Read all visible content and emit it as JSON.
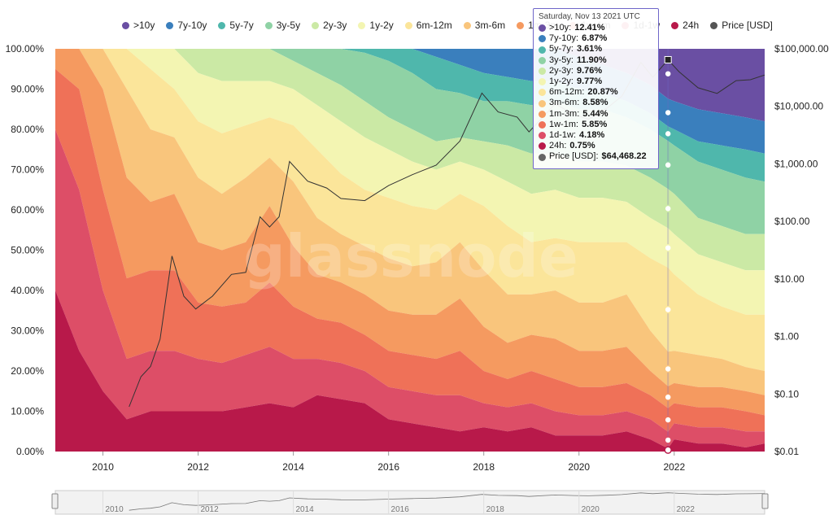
{
  "colors": {
    "bands": [
      "#6a4fa3",
      "#3a7fbd",
      "#4fb7ac",
      "#8fd2a5",
      "#cbe9a5",
      "#f3f5b2",
      "#fbe59a",
      "#f9c57c",
      "#f59a60",
      "#ef7158",
      "#dd4e67",
      "#b8194a"
    ],
    "price": "#333333",
    "highlight": "#6f66c9"
  },
  "legend": [
    {
      "name": ">10y",
      "color": "#6a4fa3"
    },
    {
      "name": "7y-10y",
      "color": "#3a7fbd"
    },
    {
      "name": "5y-7y",
      "color": "#4fb7ac"
    },
    {
      "name": "3y-5y",
      "color": "#8fd2a5"
    },
    {
      "name": "2y-3y",
      "color": "#cbe9a5"
    },
    {
      "name": "1y-2y",
      "color": "#f3f5b2"
    },
    {
      "name": "6m-12m",
      "color": "#fbe59a"
    },
    {
      "name": "3m-6m",
      "color": "#f9c57c"
    },
    {
      "name": "1m-3m",
      "color": "#f59a60"
    },
    {
      "name": "1w-1m",
      "color": "#ef7158"
    },
    {
      "name": "1d-1w",
      "color": "#dd4e67"
    },
    {
      "name": "24h",
      "color": "#b8194a"
    },
    {
      "name": "Price [USD]",
      "color": "#555555"
    }
  ],
  "tooltip": {
    "date": "Saturday, Nov 13 2021 UTC",
    "rows": [
      {
        "label": ">10y:",
        "value": "12.41%",
        "color": "#6a4fa3"
      },
      {
        "label": "7y-10y:",
        "value": "6.87%",
        "color": "#3a7fbd"
      },
      {
        "label": "5y-7y:",
        "value": "3.61%",
        "color": "#4fb7ac"
      },
      {
        "label": "3y-5y:",
        "value": "11.90%",
        "color": "#8fd2a5"
      },
      {
        "label": "2y-3y:",
        "value": "9.76%",
        "color": "#cbe9a5"
      },
      {
        "label": "1y-2y:",
        "value": "9.77%",
        "color": "#f3f5b2"
      },
      {
        "label": "6m-12m:",
        "value": "20.87%",
        "color": "#fbe59a"
      },
      {
        "label": "3m-6m:",
        "value": "8.58%",
        "color": "#f9c57c"
      },
      {
        "label": "1m-3m:",
        "value": "5.44%",
        "color": "#f59a60"
      },
      {
        "label": "1w-1m:",
        "value": "5.85%",
        "color": "#ef7158"
      },
      {
        "label": "1d-1w:",
        "value": "4.18%",
        "color": "#dd4e67"
      },
      {
        "label": "24h:",
        "value": "0.75%",
        "color": "#b8194a"
      },
      {
        "label": "Price [USD]:",
        "value": "$64,468.22",
        "color": "#666666"
      }
    ]
  },
  "watermark": "glassnode",
  "chart_data": {
    "type": "area",
    "stacked": "percent",
    "x_range": [
      2009.0,
      2023.9
    ],
    "ylim": [
      0,
      100
    ],
    "y_ticks": [
      "0.00%",
      "10.00%",
      "20.00%",
      "30.00%",
      "40.00%",
      "50.00%",
      "60.00%",
      "70.00%",
      "80.00%",
      "90.00%",
      "100.00%"
    ],
    "y2_scale": "log",
    "y2_range": [
      0.01,
      100000
    ],
    "y2_ticks": [
      "$0.01",
      "$0.10",
      "$1.00",
      "$10.00",
      "$100.00",
      "$1,000.00",
      "$10,000.00",
      "$100,000.00"
    ],
    "x_ticks": [
      "2010",
      "2012",
      "2014",
      "2016",
      "2018",
      "2020",
      "2022"
    ],
    "navigator_ticks": [
      "2010",
      "2012",
      "2014",
      "2016",
      "2018",
      "2020",
      "2022"
    ],
    "highlight_x": 2021.87,
    "bands_top_to_bottom": [
      ">10y",
      "7y-10y",
      "5y-7y",
      "3y-5y",
      "2y-3y",
      "1y-2y",
      "6m-12m",
      "3m-6m",
      "1m-3m",
      "1w-1m",
      "1d-1w",
      "24h"
    ],
    "x": [
      2009.0,
      2009.5,
      2010.0,
      2010.5,
      2011.0,
      2011.5,
      2012.0,
      2012.5,
      2013.0,
      2013.5,
      2014.0,
      2014.5,
      2015.0,
      2015.5,
      2016.0,
      2016.5,
      2017.0,
      2017.5,
      2018.0,
      2018.5,
      2019.0,
      2019.5,
      2020.0,
      2020.5,
      2021.0,
      2021.5,
      2021.87,
      2022.0,
      2022.5,
      2023.0,
      2023.5,
      2023.9
    ],
    "series": [
      {
        "name": ">10y",
        "values": [
          0,
          0,
          0,
          0,
          0,
          0,
          0,
          0,
          0,
          0,
          0,
          0,
          0,
          0,
          0,
          0,
          0,
          0,
          0,
          0,
          0,
          0,
          2,
          4,
          6,
          9,
          12.41,
          13,
          15,
          16,
          17,
          18
        ]
      },
      {
        "name": "7y-10y",
        "values": [
          0,
          0,
          0,
          0,
          0,
          0,
          0,
          0,
          0,
          0,
          0,
          0,
          0,
          0,
          0,
          0,
          2,
          4,
          6,
          7,
          8,
          8,
          8,
          7,
          7,
          7,
          6.87,
          7,
          8,
          8,
          8,
          8
        ]
      },
      {
        "name": "5y-7y",
        "values": [
          0,
          0,
          0,
          0,
          0,
          0,
          0,
          0,
          0,
          0,
          0,
          0,
          0,
          1,
          3,
          6,
          8,
          7,
          7,
          6,
          6,
          5,
          5,
          4,
          4,
          4,
          3.61,
          4,
          5,
          6,
          7,
          7
        ]
      },
      {
        "name": "3y-5y",
        "values": [
          0,
          0,
          0,
          0,
          0,
          0,
          0,
          0,
          0,
          0,
          3,
          6,
          9,
          12,
          14,
          14,
          13,
          11,
          10,
          11,
          12,
          13,
          13,
          13,
          12,
          12,
          11.9,
          12,
          14,
          14,
          14,
          13
        ]
      },
      {
        "name": "2y-3y",
        "values": [
          0,
          0,
          0,
          0,
          0,
          0,
          6,
          8,
          8,
          8,
          7,
          8,
          9,
          9,
          8,
          8,
          7,
          6,
          7,
          9,
          10,
          9,
          9,
          9,
          9,
          10,
          9.76,
          10,
          9,
          9,
          9,
          9
        ]
      },
      {
        "name": "1y-2y",
        "values": [
          0,
          0,
          0,
          0,
          5,
          10,
          12,
          13,
          11,
          9,
          9,
          11,
          13,
          13,
          12,
          11,
          10,
          8,
          9,
          11,
          12,
          12,
          11,
          11,
          10,
          10,
          9.77,
          10,
          10,
          11,
          11,
          11
        ]
      },
      {
        "name": "6m-12m",
        "values": [
          0,
          0,
          0,
          10,
          15,
          12,
          14,
          15,
          13,
          10,
          14,
          17,
          15,
          14,
          15,
          15,
          13,
          12,
          16,
          17,
          13,
          13,
          15,
          15,
          13,
          18,
          20.87,
          19,
          15,
          13,
          13,
          14
        ]
      },
      {
        "name": "3m-6m",
        "values": [
          0,
          0,
          10,
          22,
          18,
          14,
          16,
          14,
          16,
          12,
          16,
          14,
          12,
          12,
          13,
          12,
          13,
          14,
          14,
          12,
          10,
          12,
          12,
          12,
          13,
          10,
          8.58,
          8,
          8,
          7,
          6,
          6
        ]
      },
      {
        "name": "1m-3m",
        "values": [
          5,
          10,
          25,
          25,
          17,
          19,
          15,
          14,
          15,
          19,
          15,
          11,
          10,
          10,
          10,
          10,
          11,
          13,
          11,
          9,
          9,
          10,
          9,
          9,
          9,
          6,
          5.44,
          5,
          5,
          5,
          5,
          5
        ]
      },
      {
        "name": "1w-1m",
        "values": [
          15,
          25,
          25,
          20,
          20,
          20,
          14,
          14,
          13,
          16,
          13,
          10,
          10,
          9,
          9,
          9,
          9,
          11,
          8,
          7,
          8,
          8,
          7,
          7,
          7,
          6,
          5.85,
          5,
          5,
          5,
          5,
          4
        ]
      },
      {
        "name": "1d-1w",
        "values": [
          40,
          40,
          25,
          15,
          15,
          15,
          13,
          12,
          13,
          14,
          12,
          9,
          9,
          8,
          8,
          8,
          8,
          9,
          6,
          6,
          6,
          6,
          5,
          5,
          5,
          5,
          4.18,
          4,
          4,
          4,
          4,
          3
        ]
      },
      {
        "name": "24h",
        "values": [
          40,
          25,
          15,
          8,
          10,
          10,
          10,
          10,
          11,
          12,
          11,
          14,
          13,
          12,
          8,
          7,
          6,
          5,
          6,
          5,
          6,
          4,
          4,
          4,
          5,
          3,
          0.75,
          3,
          2,
          2,
          1,
          2
        ]
      }
    ],
    "price_series": {
      "name": "Price [USD]",
      "x": [
        2010.55,
        2010.8,
        2011.0,
        2011.2,
        2011.45,
        2011.7,
        2011.95,
        2012.3,
        2012.7,
        2013.0,
        2013.3,
        2013.5,
        2013.7,
        2013.92,
        2014.3,
        2014.7,
        2015.0,
        2015.5,
        2016.0,
        2016.5,
        2017.0,
        2017.5,
        2017.96,
        2018.3,
        2018.7,
        2018.95,
        2019.5,
        2019.9,
        2020.2,
        2020.6,
        2020.9,
        2021.3,
        2021.55,
        2021.87,
        2022.1,
        2022.5,
        2022.9,
        2023.3,
        2023.6,
        2023.9
      ],
      "values": [
        0.06,
        0.2,
        0.3,
        0.9,
        25,
        5,
        3,
        5,
        12,
        13,
        120,
        80,
        120,
        1100,
        500,
        380,
        250,
        230,
        420,
        650,
        950,
        2500,
        17000,
        8000,
        6500,
        3600,
        11000,
        7200,
        6000,
        9500,
        15000,
        58000,
        32000,
        64468,
        40000,
        21000,
        16800,
        28000,
        29000,
        35000
      ]
    }
  }
}
